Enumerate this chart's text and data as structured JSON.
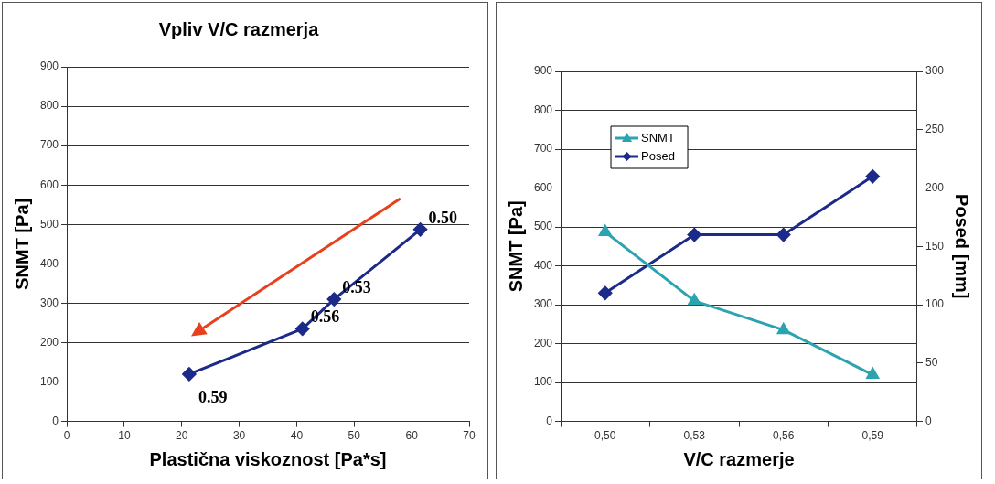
{
  "chart_data": [
    {
      "type": "line",
      "title": "Vpliv V/C razmerja",
      "xlabel": "Plastična viskoznost [Pa*s]",
      "ylabel": "SNMT [Pa]",
      "x": [
        21.3,
        41,
        46.5,
        61.5
      ],
      "series": [
        {
          "color": "#1c2a8a",
          "values": [
            120,
            235,
            310,
            487
          ],
          "marker": "diamond"
        }
      ],
      "xlim": [
        0,
        70
      ],
      "xticks": [
        0,
        10,
        20,
        30,
        40,
        50,
        60,
        70
      ],
      "ylim": [
        0,
        900
      ],
      "yticks": [
        0,
        100,
        200,
        300,
        400,
        500,
        600,
        700,
        800,
        900
      ],
      "grid": "y",
      "legend": false,
      "line_style": "solid",
      "annotations": [
        {
          "text": "0.59",
          "x": 21.3,
          "y": 120
        },
        {
          "text": "0.56",
          "x": 41,
          "y": 235
        },
        {
          "text": "0.53",
          "x": 46.5,
          "y": 310
        },
        {
          "text": "0.50",
          "x": 61.5,
          "y": 487
        }
      ]
    },
    {
      "type": "line",
      "xlabel": "V/C razmerje",
      "ylabel": "SNMT [Pa]",
      "y2label": "Posed [mm]",
      "categories": [
        "0,50",
        "0,53",
        "0,56",
        "0,59"
      ],
      "series": [
        {
          "name": "SNMT",
          "color": "#2ba3b0",
          "values": [
            487,
            310,
            235,
            120
          ],
          "marker": "triangle"
        },
        {
          "name": "Posed",
          "color": "#1c2a8a",
          "values": [
            110,
            160,
            160,
            210
          ],
          "marker": "diamond",
          "axis": "y2"
        }
      ],
      "ylim": [
        0,
        900
      ],
      "yticks": [
        0,
        100,
        200,
        300,
        400,
        500,
        600,
        700,
        800,
        900
      ],
      "y2lim": [
        0,
        300
      ],
      "y2ticks": [
        0,
        50,
        100,
        150,
        200,
        250,
        300
      ],
      "grid": "y",
      "legend": "top left",
      "line_style": "solid"
    }
  ]
}
